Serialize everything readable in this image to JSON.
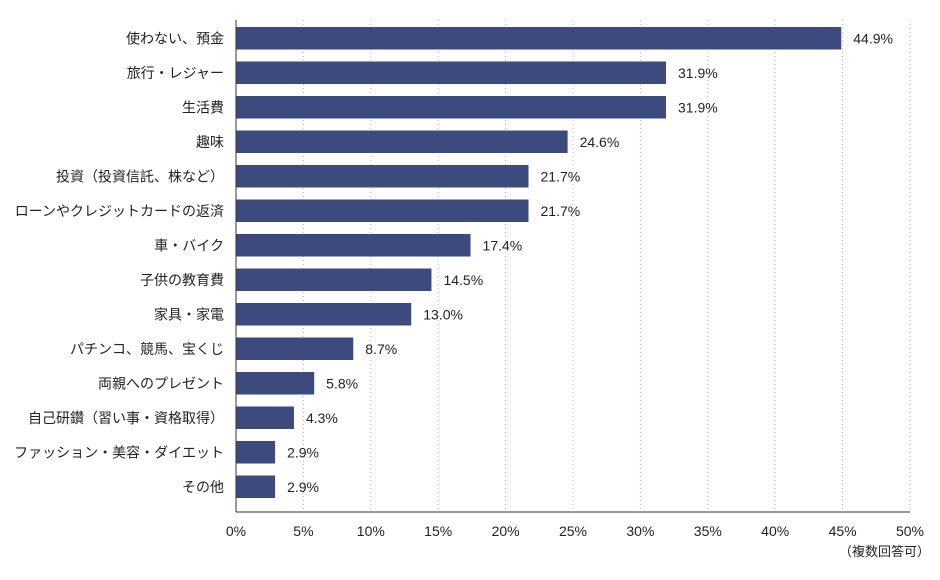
{
  "chart_data": {
    "type": "bar",
    "orientation": "horizontal",
    "categories": [
      "使わない、預金",
      "旅行・レジャー",
      "生活費",
      "趣味",
      "投資（投資信託、株など）",
      "ローンやクレジットカードの返済",
      "車・バイク",
      "子供の教育費",
      "家具・家電",
      "パチンコ、競馬、宝くじ",
      "両親へのプレゼント",
      "自己研鑽（習い事・資格取得）",
      "ファッション・美容・ダイエット",
      "その他"
    ],
    "values": [
      44.9,
      31.9,
      31.9,
      24.6,
      21.7,
      21.7,
      17.4,
      14.5,
      13.0,
      8.7,
      5.8,
      4.3,
      2.9,
      2.9
    ],
    "value_labels": [
      "44.9%",
      "31.9%",
      "31.9%",
      "24.6%",
      "21.7%",
      "21.7%",
      "17.4%",
      "14.5%",
      "13.0%",
      "8.7%",
      "5.8%",
      "4.3%",
      "2.9%",
      "2.9%"
    ],
    "xlim": [
      0,
      50
    ],
    "xticks": [
      0,
      5,
      10,
      15,
      20,
      25,
      30,
      35,
      40,
      45,
      50
    ],
    "xtick_labels": [
      "0%",
      "5%",
      "10%",
      "15%",
      "20%",
      "25%",
      "30%",
      "35%",
      "40%",
      "45%",
      "50%"
    ],
    "note": "（複数回答可）",
    "grid": "vertical dotted",
    "bar_color": "#3d4a7e",
    "axis_color": "#333333",
    "grid_color": "#b5b5b5"
  }
}
